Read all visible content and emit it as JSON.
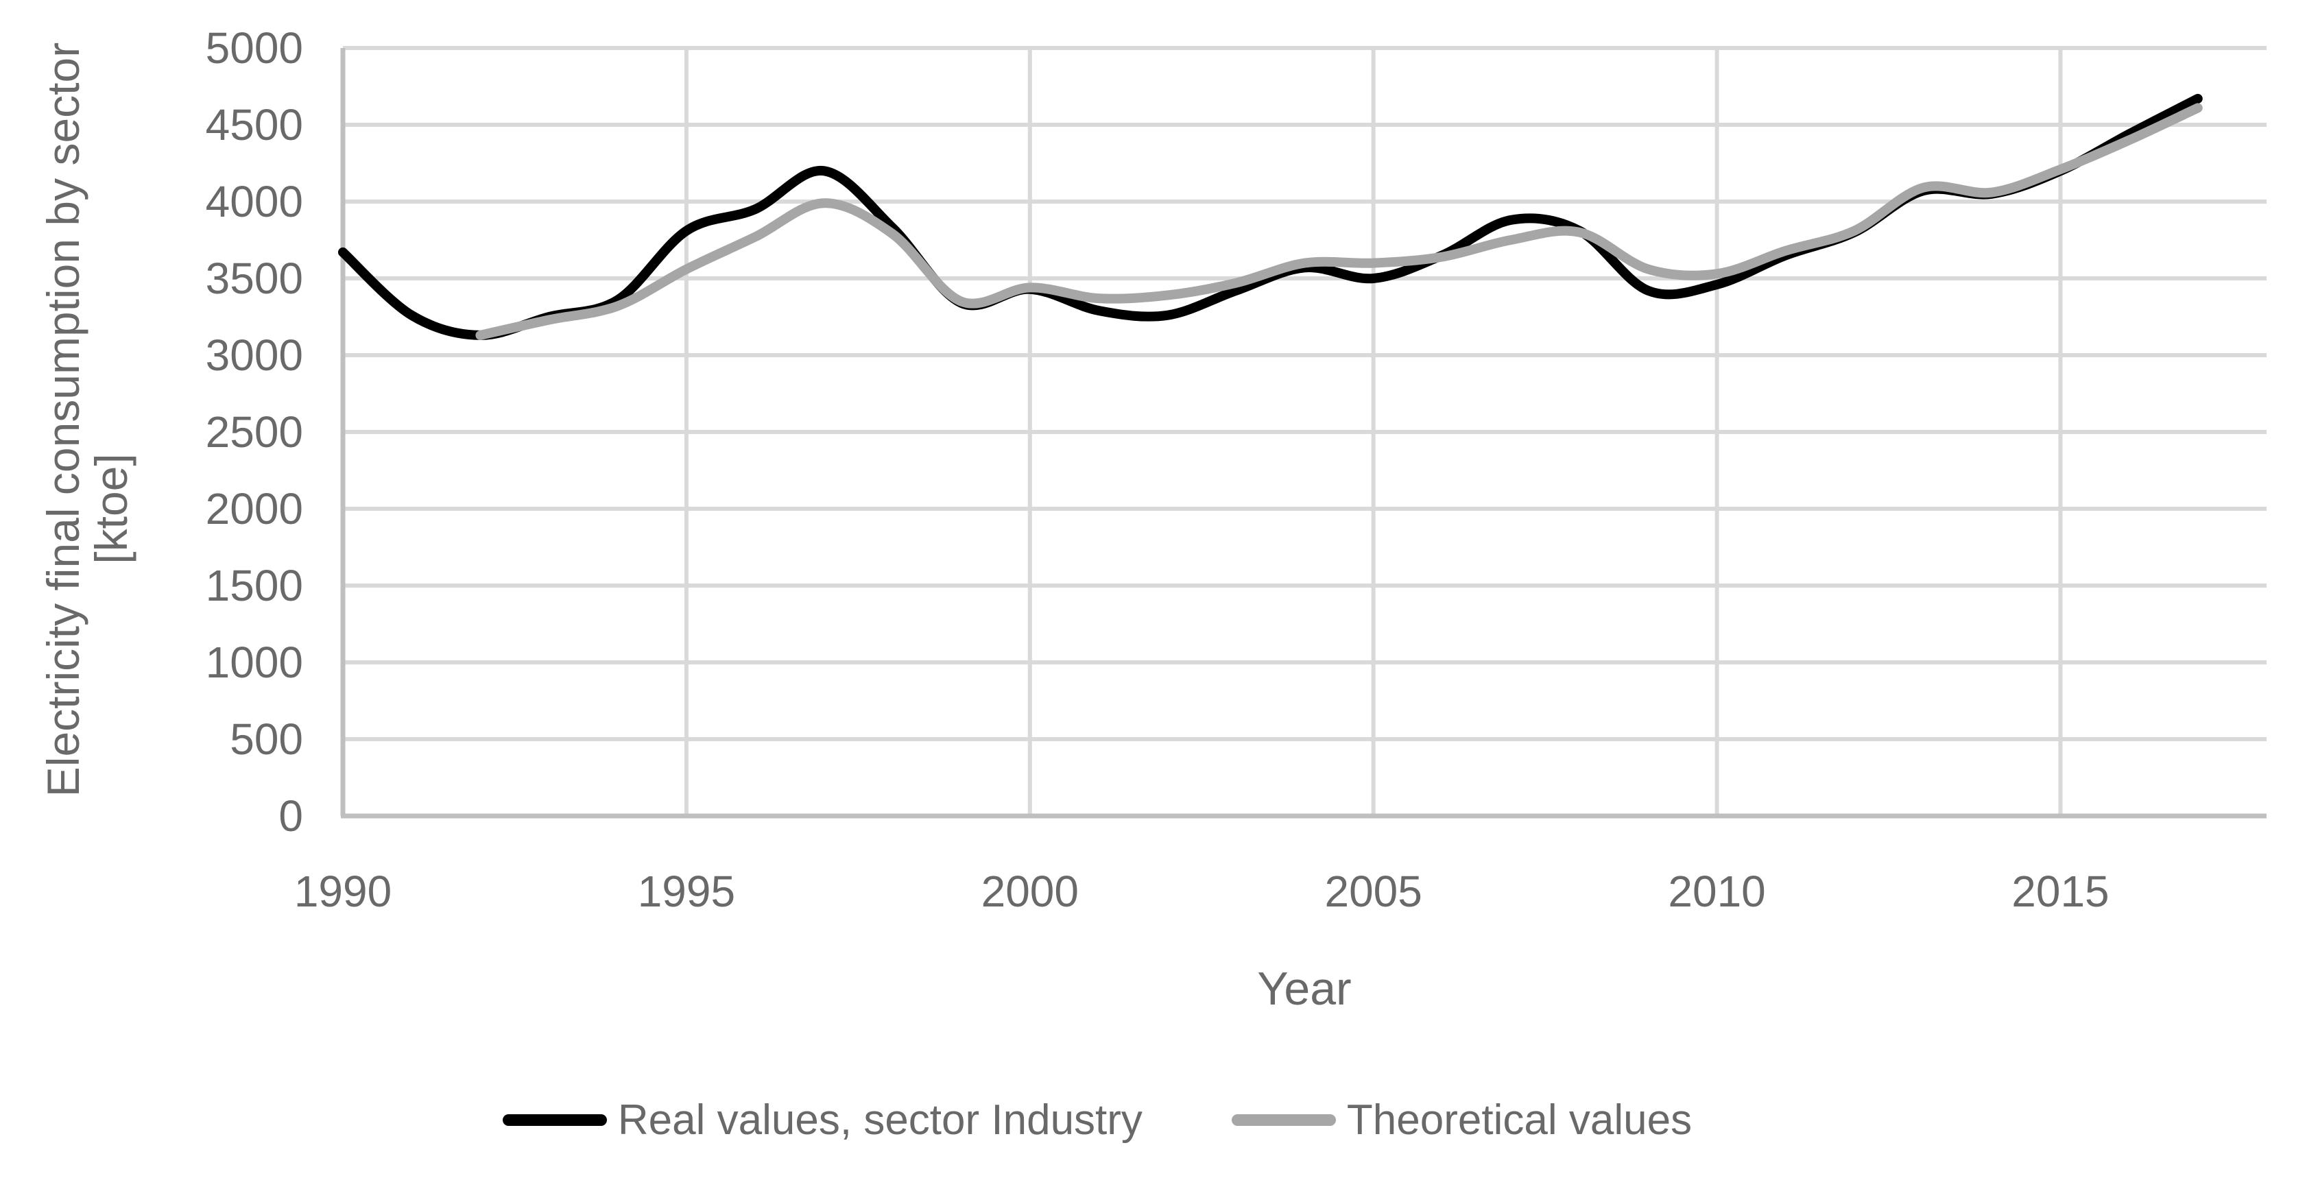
{
  "figure": {
    "y_axis_title_line1": "Electricity final consumption by sector",
    "y_axis_title_line2": "[ktoe]",
    "x_axis_title": "Year"
  },
  "legend": {
    "items": [
      {
        "label": "Real values, sector Industry",
        "color": "#000000"
      },
      {
        "label": "Theoretical values",
        "color": "#a6a6a6"
      }
    ]
  },
  "colors": {
    "gridline": "#d9d9d9",
    "axis_line": "#bfbfbf",
    "tick_label": "#696969",
    "series_real": "#000000",
    "series_theoretical": "#a6a6a6",
    "background": "#ffffff"
  },
  "chart_data": {
    "type": "line",
    "title": "",
    "xlabel": "Year",
    "ylabel": "Electricity final consumption by sector [ktoe]",
    "xlim": [
      1990,
      2018
    ],
    "ylim": [
      0,
      5000
    ],
    "x_ticks": [
      1990,
      1995,
      2000,
      2005,
      2010,
      2015
    ],
    "y_ticks": [
      0,
      500,
      1000,
      1500,
      2000,
      2500,
      3000,
      3500,
      4000,
      4500,
      5000
    ],
    "grid": true,
    "legend_position": "bottom",
    "line_style": "smooth",
    "series": [
      {
        "name": "Real values, sector Industry",
        "color": "#000000",
        "x": [
          1990,
          1991,
          1992,
          1993,
          1994,
          1995,
          1996,
          1997,
          1998,
          1999,
          2000,
          2001,
          2002,
          2003,
          2004,
          2005,
          2006,
          2007,
          2008,
          2009,
          2010,
          2011,
          2012,
          2013,
          2014,
          2015,
          2016,
          2017
        ],
        "values": [
          3670,
          3260,
          3130,
          3250,
          3360,
          3810,
          3950,
          4200,
          3830,
          3340,
          3430,
          3290,
          3260,
          3420,
          3570,
          3500,
          3650,
          3880,
          3810,
          3420,
          3460,
          3650,
          3800,
          4070,
          4050,
          4200,
          4440,
          4670
        ]
      },
      {
        "name": "Theoretical values",
        "color": "#a6a6a6",
        "x": [
          1992,
          1993,
          1994,
          1995,
          1996,
          1997,
          1998,
          1999,
          2000,
          2001,
          2002,
          2003,
          2004,
          2005,
          2006,
          2007,
          2008,
          2009,
          2010,
          2011,
          2012,
          2013,
          2014,
          2015,
          2016,
          2017
        ],
        "values": [
          3130,
          3230,
          3320,
          3560,
          3770,
          3990,
          3790,
          3350,
          3440,
          3370,
          3390,
          3470,
          3600,
          3600,
          3640,
          3750,
          3800,
          3560,
          3530,
          3680,
          3810,
          4090,
          4060,
          4210,
          4400,
          4610
        ]
      }
    ]
  }
}
